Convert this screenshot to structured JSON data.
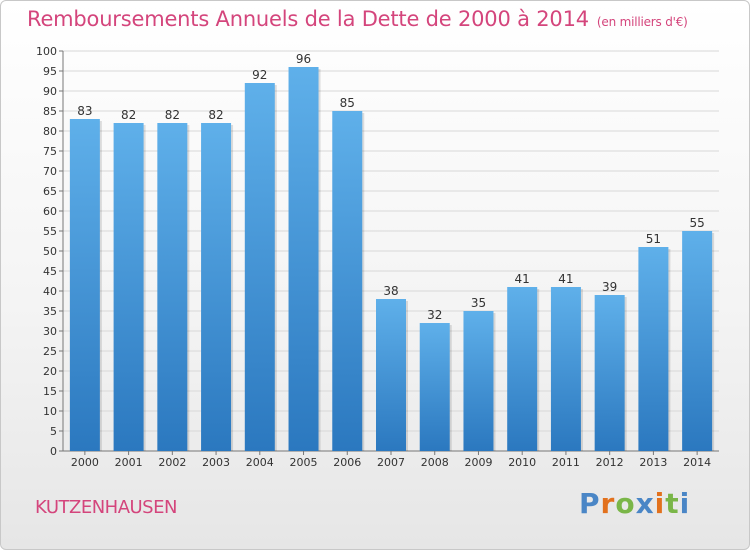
{
  "header": {
    "title": "Remboursements Annuels de la Dette de 2000 à 2014",
    "unit": "(en milliers d'€)"
  },
  "footer": {
    "city": "KUTZENHAUSEN",
    "logo": "Proxiti"
  },
  "colors": {
    "title": "#d4457c",
    "bar_top": "#5fb0ea",
    "bar_bottom": "#2b78bf",
    "logo_letters": [
      "#4a86c6",
      "#e2711d",
      "#7ab648",
      "#4a86c6",
      "#e2711d",
      "#7ab648",
      "#4a86c6"
    ]
  },
  "chart_data": {
    "type": "bar",
    "title": "Remboursements Annuels de la Dette de 2000 à 2014",
    "xlabel": "",
    "ylabel": "",
    "ylim": [
      0,
      100
    ],
    "ytick_step": 5,
    "grid": true,
    "legend": "none",
    "categories": [
      "2000",
      "2001",
      "2002",
      "2003",
      "2004",
      "2005",
      "2006",
      "2007",
      "2008",
      "2009",
      "2010",
      "2011",
      "2012",
      "2013",
      "2014"
    ],
    "values": [
      83,
      82,
      82,
      82,
      92,
      96,
      85,
      38,
      32,
      35,
      41,
      41,
      39,
      51,
      55
    ]
  }
}
